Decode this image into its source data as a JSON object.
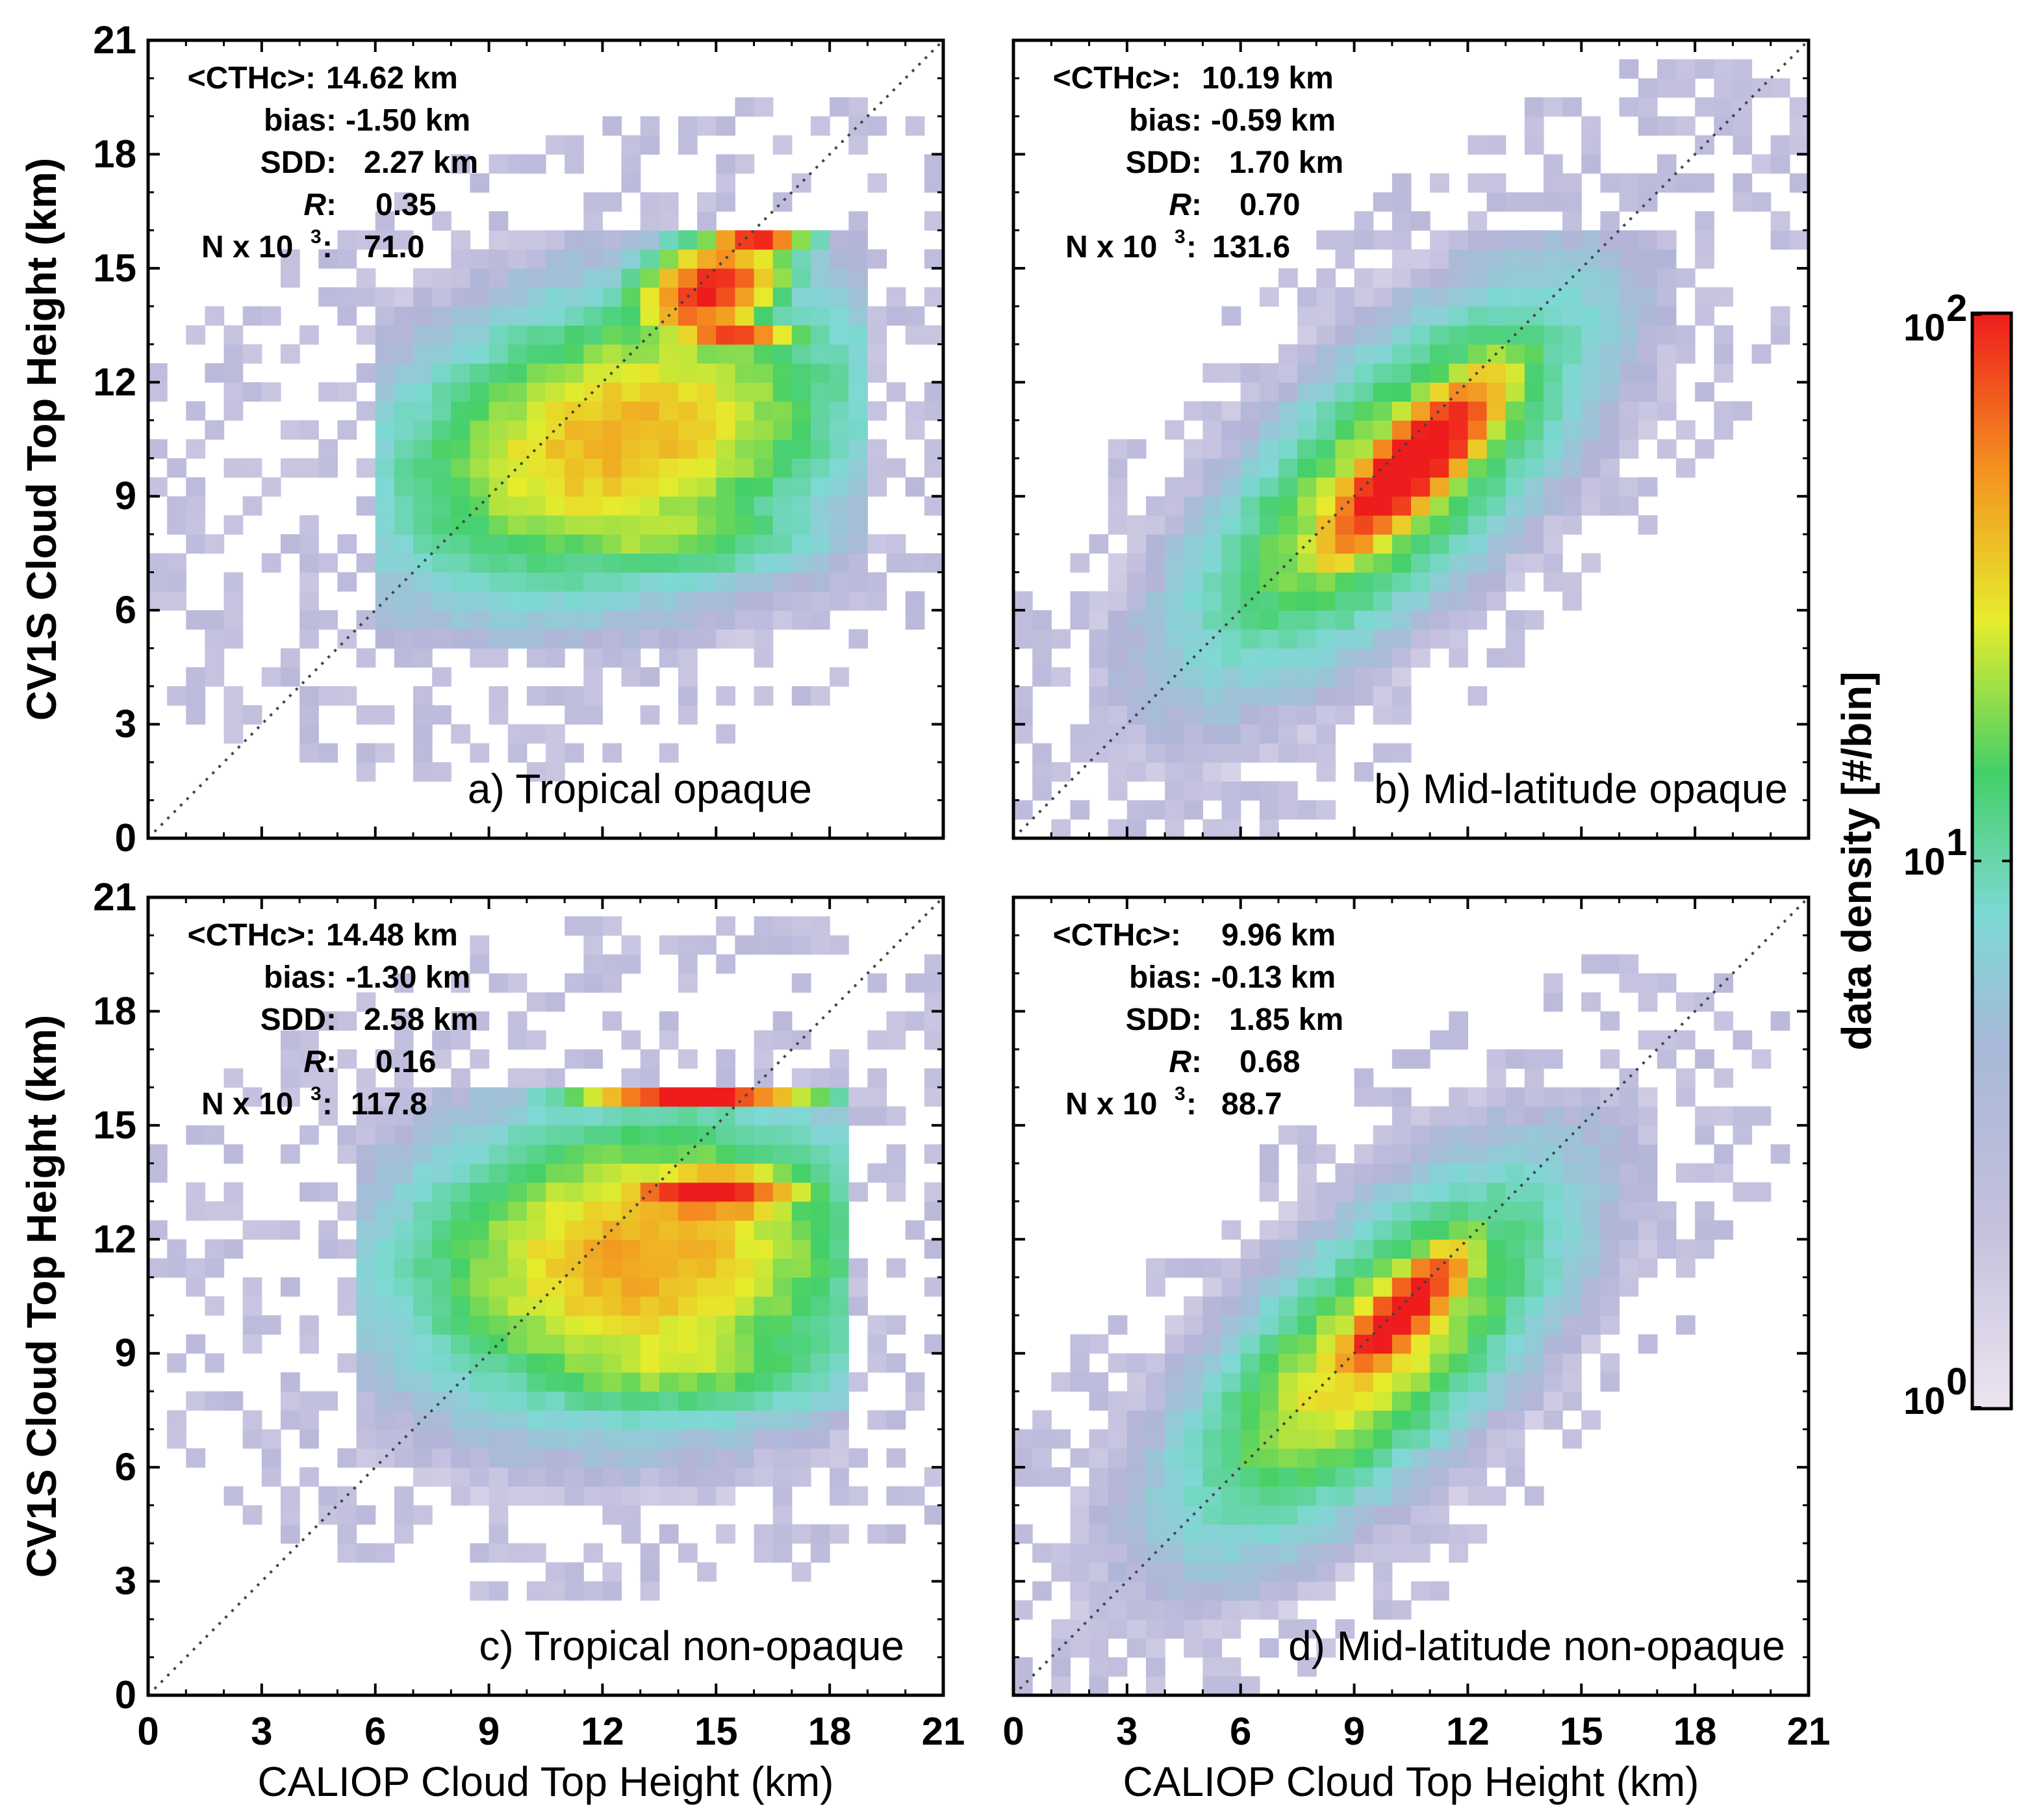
{
  "chart_data": {
    "type": "heatmap",
    "colorbar": {
      "label": "data density [#/bin]",
      "ticks": [
        {
          "base": "10",
          "exp": "2",
          "value": 100
        },
        {
          "base": "10",
          "exp": "1",
          "value": 10
        },
        {
          "base": "10",
          "exp": "0",
          "value": 1
        }
      ],
      "scale": "log",
      "range": [
        1,
        100
      ],
      "colors": [
        "#ece4f0",
        "#b4b4d8",
        "#7ed8d4",
        "#44d068",
        "#e6ec2c",
        "#f49020",
        "#ee1c1c"
      ]
    },
    "xlabel": "CALIOP Cloud Top Height (km)",
    "ylabel": "CV1S Cloud Top Height (km)",
    "xticks": [
      0,
      3,
      6,
      9,
      12,
      15,
      18,
      21
    ],
    "yticks": [
      0,
      3,
      6,
      9,
      12,
      15,
      18,
      21
    ],
    "xlim": [
      0,
      21
    ],
    "ylim": [
      0,
      21
    ],
    "reference_line": "1:1 dotted",
    "panels": [
      {
        "id": "a",
        "label": "a) Tropical opaque",
        "stats": {
          "cthc_label": "<CTHc>:",
          "cthc": "14.62 km",
          "bias_label": "bias:",
          "bias": "-1.50 km",
          "sdd_label": "SDD:",
          "sdd": "2.27 km",
          "r_label": "R",
          "r": "0.35",
          "n_label_pre": "N x 10",
          "n_label_exp": "3",
          "n_label_post": ":",
          "n": "71.0"
        },
        "density_blobs": [
          {
            "x": 12.5,
            "y": 10.5,
            "sx": 5.0,
            "sy": 3.2,
            "rho": 0.3,
            "peak": 1.55
          },
          {
            "x": 14.8,
            "y": 14.4,
            "sx": 1.8,
            "sy": 1.3,
            "rho": 0.35,
            "peak": 2.0
          },
          {
            "x": 16.0,
            "y": 15.8,
            "sx": 1.2,
            "sy": 0.25,
            "rho": 0,
            "peak": 2.05
          },
          {
            "x": 15.5,
            "y": 13.2,
            "sx": 1.6,
            "sy": 0.3,
            "rho": 0,
            "peak": 1.9
          },
          {
            "x": 13.0,
            "y": 8.2,
            "sx": 4.0,
            "sy": 1.3,
            "rho": 0,
            "peak": 1.25
          }
        ],
        "support": {
          "x_min": 6.0,
          "x_max": 19.0,
          "y_min": 5.2,
          "y_max": 16.2
        }
      },
      {
        "id": "b",
        "label": "b) Mid-latitude opaque",
        "stats": {
          "cthc_label": "<CTHc>:",
          "cthc": "10.19 km",
          "bias_label": "bias:",
          "bias": "-0.59 km",
          "sdd_label": "SDD:",
          "sdd": "1.70 km",
          "r_label": "R",
          "r": "0.70",
          "n_label_pre": "N x 10",
          "n_label_exp": "3",
          "n_label_post": ":",
          "n": "131.6"
        },
        "density_blobs": [
          {
            "x": 10.5,
            "y": 9.8,
            "sx": 2.6,
            "sy": 2.6,
            "rho": 0.82,
            "peak": 2.25
          },
          {
            "x": 10.0,
            "y": 9.5,
            "sx": 4.2,
            "sy": 4.0,
            "rho": 0.72,
            "peak": 1.4
          }
        ],
        "support": {
          "x_min": 2.0,
          "x_max": 17.5,
          "y_min": 1.2,
          "y_max": 16.2
        }
      },
      {
        "id": "c",
        "label": "c) Tropical non-opaque",
        "stats": {
          "cthc_label": "<CTHc>:",
          "cthc": "14.48 km",
          "bias_label": "bias:",
          "bias": "-1.30 km",
          "sdd_label": "SDD:",
          "sdd": "2.58 km",
          "r_label": "R",
          "r": "0.16",
          "n_label_pre": "N x 10",
          "n_label_exp": "3",
          "n_label_post": ":",
          "n": "117.8"
        },
        "density_blobs": [
          {
            "x": 13.0,
            "y": 11.5,
            "sx": 5.0,
            "sy": 3.2,
            "rho": 0.1,
            "peak": 1.6
          },
          {
            "x": 14.5,
            "y": 15.8,
            "sx": 2.8,
            "sy": 0.3,
            "rho": 0,
            "peak": 2.1
          },
          {
            "x": 14.8,
            "y": 13.2,
            "sx": 2.6,
            "sy": 0.7,
            "rho": 0,
            "peak": 2.05
          },
          {
            "x": 13.5,
            "y": 9.0,
            "sx": 4.5,
            "sy": 1.5,
            "rho": 0,
            "peak": 1.3
          }
        ],
        "support": {
          "x_min": 5.5,
          "x_max": 18.5,
          "y_min": 5.0,
          "y_max": 16.2
        }
      },
      {
        "id": "d",
        "label": "d) Mid-latitude non-opaque",
        "stats": {
          "cthc_label": "<CTHc>:",
          "cthc": "9.96 km",
          "bias_label": "bias:",
          "bias": "-0.13 km",
          "sdd_label": "SDD:",
          "sdd": "1.85 km",
          "r_label": "R",
          "r": "0.68",
          "n_label_pre": "N x 10",
          "n_label_exp": "3",
          "n_label_post": ":",
          "n": "88.7"
        },
        "density_blobs": [
          {
            "x": 10.2,
            "y": 10.0,
            "sx": 2.0,
            "sy": 2.0,
            "rho": 0.8,
            "peak": 2.15
          },
          {
            "x": 9.5,
            "y": 9.0,
            "sx": 4.0,
            "sy": 3.8,
            "rho": 0.7,
            "peak": 1.45
          }
        ],
        "support": {
          "x_min": 1.5,
          "x_max": 17.0,
          "y_min": 0.5,
          "y_max": 16.2
        }
      }
    ]
  }
}
